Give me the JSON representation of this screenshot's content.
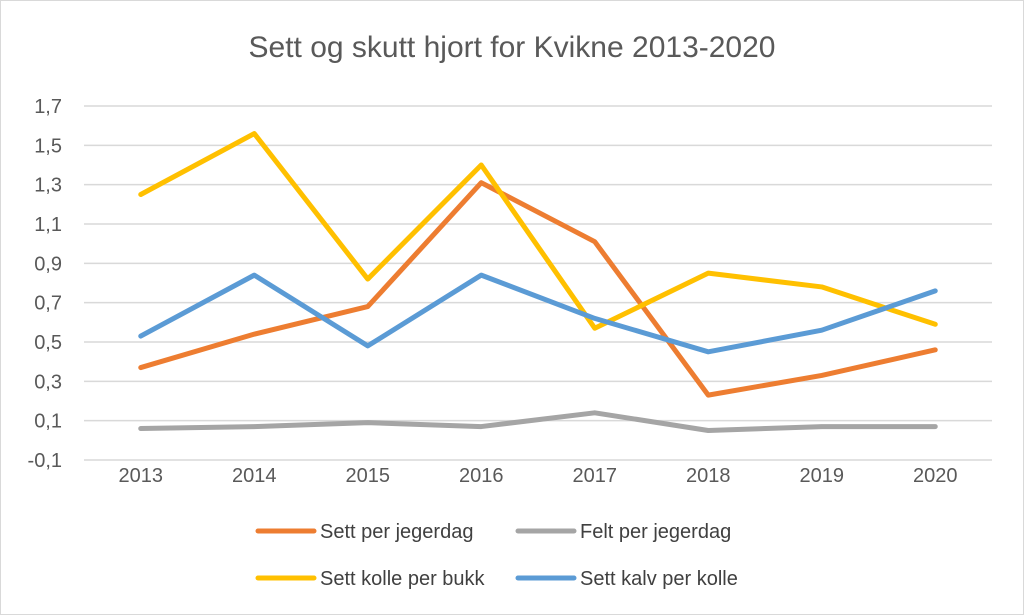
{
  "chart_data": {
    "type": "line",
    "title": "Sett og skutt hjort for Kvikne 2013-2020",
    "xlabel": "",
    "ylabel": "",
    "categories": [
      "2013",
      "2014",
      "2015",
      "2016",
      "2017",
      "2018",
      "2019",
      "2020"
    ],
    "ylim": [
      -0.1,
      1.7
    ],
    "yticks": [
      -0.1,
      0.1,
      0.3,
      0.5,
      0.7,
      0.9,
      1.1,
      1.3,
      1.5,
      1.7
    ],
    "ytick_labels": [
      "-0,1",
      "0,1",
      "0,3",
      "0,5",
      "0,7",
      "0,9",
      "1,1",
      "1,3",
      "1,5",
      "1,7"
    ],
    "grid": true,
    "legend_position": "bottom",
    "series": [
      {
        "name": "Sett per jegerdag",
        "color": "#ED7D31",
        "values": [
          0.37,
          0.54,
          0.68,
          1.31,
          1.01,
          0.23,
          0.33,
          0.46
        ]
      },
      {
        "name": "Felt per jegerdag",
        "color": "#A5A5A5",
        "values": [
          0.06,
          0.07,
          0.09,
          0.07,
          0.14,
          0.05,
          0.07,
          0.07
        ]
      },
      {
        "name": "Sett kolle per bukk",
        "color": "#FFC000",
        "values": [
          1.25,
          1.56,
          0.82,
          1.4,
          0.57,
          0.85,
          0.78,
          0.59
        ]
      },
      {
        "name": "Sett kalv per kolle",
        "color": "#5B9BD5",
        "values": [
          0.53,
          0.84,
          0.48,
          0.84,
          0.62,
          0.45,
          0.56,
          0.76
        ]
      }
    ]
  }
}
